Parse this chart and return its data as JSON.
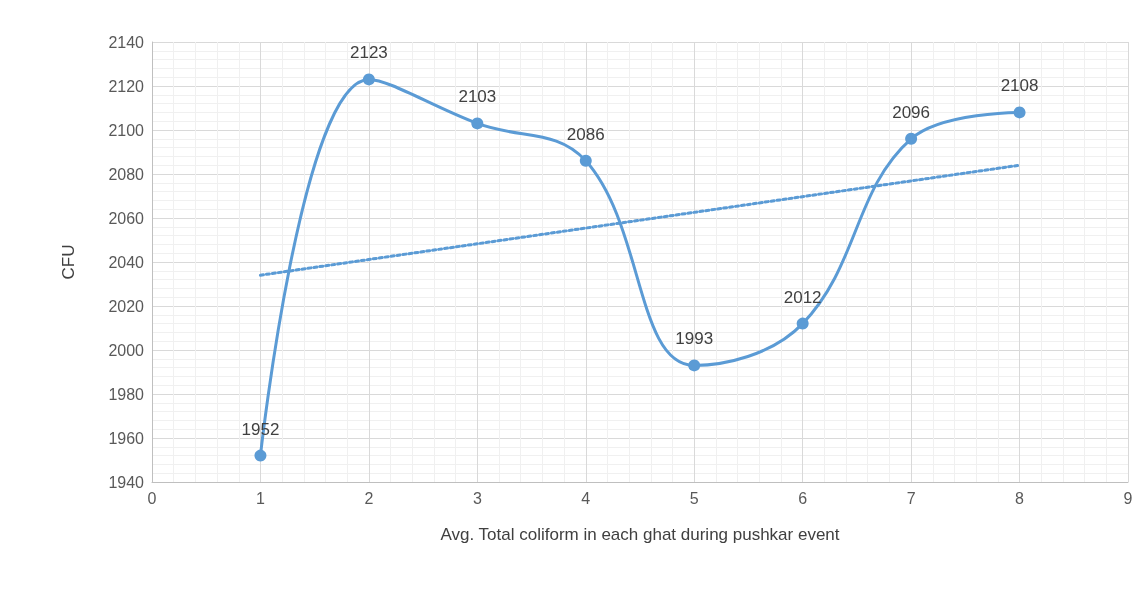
{
  "chart_data": {
    "type": "line",
    "xlabel": "Avg. Total coliform in each ghat during pushkar event",
    "ylabel": "CFU",
    "xlim": [
      0,
      9
    ],
    "xticks": [
      0,
      1,
      2,
      3,
      4,
      5,
      6,
      7,
      8,
      9
    ],
    "ylim": [
      1940,
      2140
    ],
    "yticks": [
      1940,
      1960,
      1980,
      2000,
      2020,
      2040,
      2060,
      2080,
      2100,
      2120,
      2140
    ],
    "grid": true,
    "marker": "circle",
    "line_style": "solid",
    "series": [
      {
        "x": [
          1,
          2,
          3,
          4,
          5,
          6,
          7,
          8
        ],
        "values": [
          1952,
          2123,
          2103,
          2086,
          1993,
          2012,
          2096,
          2108
        ],
        "value_labels": [
          "1952",
          "2123",
          "2103",
          "2086",
          "1993",
          "2012",
          "2096",
          "2108"
        ],
        "color": "#5b9bd5"
      },
      {
        "x": [
          1,
          8
        ],
        "values": [
          2034,
          2084
        ],
        "color": "#5b9bd5",
        "line_style": "dotted",
        "marker": "none"
      }
    ]
  }
}
